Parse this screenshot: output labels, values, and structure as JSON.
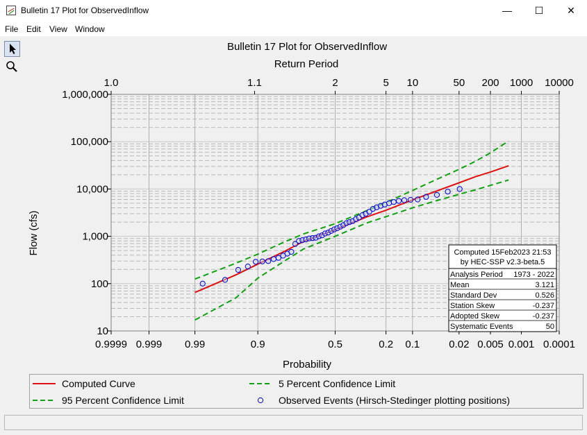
{
  "window": {
    "title": "Bulletin 17 Plot for ObservedInflow",
    "minimize_glyph": "—",
    "maximize_glyph": "☐",
    "close_glyph": "✕"
  },
  "menu": [
    "File",
    "Edit",
    "View",
    "Window"
  ],
  "toolbar": {
    "tools": [
      "pointer-icon",
      "magnifier-icon"
    ]
  },
  "colors": {
    "computed": "#e01010",
    "confidence": "#10a010",
    "observed": "#0000cc",
    "grid": "#b8b8b8"
  },
  "chart_data": {
    "type": "line",
    "title": "Bulletin 17 Plot for ObservedInflow",
    "top_axis_label": "Return Period",
    "xlabel": "Probability",
    "ylabel": "Flow (cfs)",
    "x_scale": "normal-probability",
    "y_scale": "log",
    "ylim": [
      10,
      1000000
    ],
    "xlim": [
      0.9999,
      0.0001
    ],
    "probability_ticks": [
      {
        "p": 0.9999,
        "label": "0.9999"
      },
      {
        "p": 0.999,
        "label": "0.999"
      },
      {
        "p": 0.99,
        "label": "0.99"
      },
      {
        "p": 0.9,
        "label": "0.9"
      },
      {
        "p": 0.5,
        "label": "0.5"
      },
      {
        "p": 0.2,
        "label": "0.2"
      },
      {
        "p": 0.1,
        "label": "0.1"
      },
      {
        "p": 0.02,
        "label": "0.02"
      },
      {
        "p": 0.005,
        "label": "0.005"
      },
      {
        "p": 0.001,
        "label": "0.001"
      },
      {
        "p": 0.0001,
        "label": "0.0001"
      }
    ],
    "return_period_ticks": [
      {
        "p": 0.9999,
        "label": "1.0"
      },
      {
        "p": 0.9091,
        "label": "1.1"
      },
      {
        "p": 0.5,
        "label": "2"
      },
      {
        "p": 0.2,
        "label": "5"
      },
      {
        "p": 0.1,
        "label": "10"
      },
      {
        "p": 0.02,
        "label": "50"
      },
      {
        "p": 0.005,
        "label": "200"
      },
      {
        "p": 0.001,
        "label": "1000"
      },
      {
        "p": 0.0001,
        "label": "10000"
      }
    ],
    "y_ticks": [
      {
        "v": 10,
        "label": "10"
      },
      {
        "v": 100,
        "label": "100"
      },
      {
        "v": 1000,
        "label": "1,000"
      },
      {
        "v": 10000,
        "label": "10,000"
      },
      {
        "v": 100000,
        "label": "100,000"
      },
      {
        "v": 1000000,
        "label": "1,000,000"
      }
    ],
    "grid": true,
    "series": [
      {
        "name": "Computed Curve",
        "style": "solid",
        "points": [
          [
            0.99,
            65
          ],
          [
            0.95,
            153
          ],
          [
            0.9,
            258
          ],
          [
            0.8,
            479
          ],
          [
            0.7,
            781
          ],
          [
            0.5,
            1380
          ],
          [
            0.3,
            2570
          ],
          [
            0.2,
            3550
          ],
          [
            0.1,
            5890
          ],
          [
            0.05,
            8710
          ],
          [
            0.02,
            13500
          ],
          [
            0.01,
            18200
          ],
          [
            0.005,
            22900
          ],
          [
            0.002,
            31000
          ]
        ]
      },
      {
        "name": "5 Percent Confidence Limit",
        "style": "dashed",
        "points": [
          [
            0.99,
            125
          ],
          [
            0.95,
            270
          ],
          [
            0.9,
            420
          ],
          [
            0.8,
            760
          ],
          [
            0.7,
            1120
          ],
          [
            0.5,
            1850
          ],
          [
            0.3,
            3500
          ],
          [
            0.2,
            5200
          ],
          [
            0.1,
            9300
          ],
          [
            0.05,
            15200
          ],
          [
            0.02,
            26000
          ],
          [
            0.01,
            38500
          ],
          [
            0.005,
            58000
          ],
          [
            0.002,
            103000
          ]
        ]
      },
      {
        "name": "95 Percent Confidence Limit",
        "style": "dashed",
        "points": [
          [
            0.99,
            17
          ],
          [
            0.95,
            50
          ],
          [
            0.9,
            130
          ],
          [
            0.8,
            300
          ],
          [
            0.7,
            540
          ],
          [
            0.5,
            1000
          ],
          [
            0.3,
            1920
          ],
          [
            0.2,
            2600
          ],
          [
            0.1,
            4000
          ],
          [
            0.05,
            5500
          ],
          [
            0.02,
            7700
          ],
          [
            0.01,
            9600
          ],
          [
            0.005,
            11900
          ],
          [
            0.002,
            15500
          ]
        ]
      }
    ],
    "observed_events": {
      "name": "Observed Events (Hirsch-Stedinger plotting positions)",
      "points": [
        [
          0.986,
          100
        ],
        [
          0.966,
          120
        ],
        [
          0.946,
          195
        ],
        [
          0.926,
          230
        ],
        [
          0.906,
          290
        ],
        [
          0.886,
          295
        ],
        [
          0.866,
          300
        ],
        [
          0.846,
          330
        ],
        [
          0.826,
          350
        ],
        [
          0.806,
          390
        ],
        [
          0.786,
          430
        ],
        [
          0.766,
          470
        ],
        [
          0.746,
          690
        ],
        [
          0.726,
          800
        ],
        [
          0.706,
          830
        ],
        [
          0.686,
          860
        ],
        [
          0.666,
          900
        ],
        [
          0.646,
          920
        ],
        [
          0.626,
          930
        ],
        [
          0.606,
          1000
        ],
        [
          0.586,
          1050
        ],
        [
          0.566,
          1150
        ],
        [
          0.546,
          1200
        ],
        [
          0.526,
          1300
        ],
        [
          0.506,
          1400
        ],
        [
          0.486,
          1480
        ],
        [
          0.466,
          1600
        ],
        [
          0.446,
          1720
        ],
        [
          0.426,
          1900
        ],
        [
          0.406,
          2000
        ],
        [
          0.386,
          2100
        ],
        [
          0.366,
          2300
        ],
        [
          0.346,
          2500
        ],
        [
          0.326,
          2800
        ],
        [
          0.306,
          3000
        ],
        [
          0.286,
          3300
        ],
        [
          0.266,
          3800
        ],
        [
          0.246,
          4100
        ],
        [
          0.226,
          4400
        ],
        [
          0.206,
          4700
        ],
        [
          0.186,
          5000
        ],
        [
          0.166,
          5300
        ],
        [
          0.146,
          5600
        ],
        [
          0.126,
          5800
        ],
        [
          0.106,
          5900
        ],
        [
          0.086,
          6000
        ],
        [
          0.066,
          6800
        ],
        [
          0.046,
          7500
        ],
        [
          0.031,
          8800
        ],
        [
          0.0195,
          10000
        ]
      ]
    },
    "stats_box": {
      "header_line1": "Computed 15Feb2023 21:53",
      "header_line2": "by HEC-SSP v2.3-beta.5",
      "rows": [
        {
          "label": "Analysis Period",
          "value": "1973 - 2022"
        },
        {
          "label": "Mean",
          "value": "3.121"
        },
        {
          "label": "Standard Dev",
          "value": "0.526"
        },
        {
          "label": "Station Skew",
          "value": "-0.237"
        },
        {
          "label": "Adopted Skew",
          "value": "-0.237"
        },
        {
          "label": "Systematic Events",
          "value": "50"
        }
      ]
    },
    "legend": [
      {
        "name": "Computed Curve",
        "marker": "solid-line"
      },
      {
        "name": "5 Percent Confidence Limit",
        "marker": "dashed-line"
      },
      {
        "name": "95 Percent Confidence Limit",
        "marker": "dashed-line"
      },
      {
        "name": "Observed Events (Hirsch-Stedinger plotting positions)",
        "marker": "circle"
      }
    ]
  }
}
